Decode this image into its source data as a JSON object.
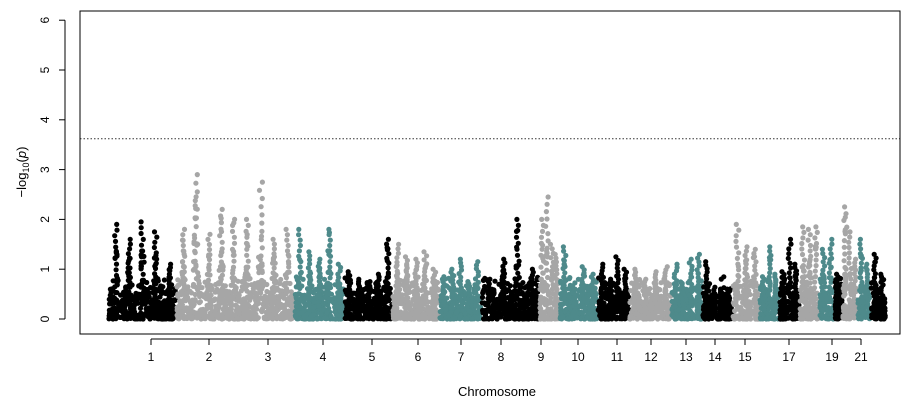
{
  "chart_data": {
    "type": "scatter",
    "title": "",
    "xlabel": "Chromosome",
    "ylabel": "−log₁₀(p)",
    "ylabel_parts": {
      "pre": "−log",
      "sub": "10",
      "post": "(",
      "var": "p",
      "close": ")"
    },
    "ylim": [
      0,
      6
    ],
    "yticks": [
      "0",
      "1",
      "2",
      "3",
      "4",
      "5",
      "6"
    ],
    "threshold": 3.62,
    "grid": false,
    "legend": "none",
    "colors": [
      "#000000",
      "#a6a6a6",
      "#4e8a8b"
    ],
    "x_tick_labels": [
      "1",
      "2",
      "3",
      "4",
      "5",
      "6",
      "7",
      "8",
      "9",
      "10",
      "11",
      "12",
      "13",
      "14",
      "15",
      "17",
      "19",
      "21"
    ],
    "chromosomes": [
      {
        "chr": 1,
        "color": "#000000",
        "peaks": [
          1.9,
          1.6,
          1.95,
          1.75,
          1.1
        ]
      },
      {
        "chr": 2,
        "color": "#a6a6a6",
        "peaks": [
          1.8,
          2.9,
          1.7,
          2.2,
          2.0
        ]
      },
      {
        "chr": 3,
        "color": "#a6a6a6",
        "peaks": [
          2.0,
          2.75,
          1.6,
          1.8
        ]
      },
      {
        "chr": 4,
        "color": "#4e8a8b",
        "peaks": [
          1.8,
          1.35,
          1.2,
          1.8,
          1.1
        ]
      },
      {
        "chr": 5,
        "color": "#000000",
        "peaks": [
          0.95,
          0.8,
          0.75,
          0.9,
          1.6
        ]
      },
      {
        "chr": 6,
        "color": "#a6a6a6",
        "peaks": [
          1.5,
          1.25,
          1.2,
          1.35,
          1.0
        ]
      },
      {
        "chr": 7,
        "color": "#4e8a8b",
        "peaks": [
          0.85,
          1.0,
          1.2,
          0.75,
          1.15
        ]
      },
      {
        "chr": 8,
        "color": "#000000",
        "peaks": [
          0.8,
          1.2,
          2.0,
          1.0
        ]
      },
      {
        "chr": 9,
        "color": "#a6a6a6",
        "peaks": [
          2.0,
          2.45,
          1.5,
          1.3
        ]
      },
      {
        "chr": 10,
        "color": "#4e8a8b",
        "peaks": [
          1.45,
          0.6,
          1.05,
          0.9
        ]
      },
      {
        "chr": 11,
        "color": "#000000",
        "peaks": [
          1.1,
          0.8,
          1.25,
          1.0
        ]
      },
      {
        "chr": 12,
        "color": "#a6a6a6",
        "peaks": [
          1.0,
          0.8,
          0.95,
          1.05
        ]
      },
      {
        "chr": 13,
        "color": "#4e8a8b",
        "peaks": [
          1.1,
          0.65,
          1.2,
          1.3
        ]
      },
      {
        "chr": 14,
        "color": "#000000",
        "peaks": [
          1.15,
          0.5,
          0.6,
          0.6
        ]
      },
      {
        "chr": 15,
        "color": "#a6a6a6",
        "peaks": [
          1.9,
          1.45,
          1.4
        ]
      },
      {
        "chr": 16,
        "color": "#4e8a8b",
        "peaks": [
          0.85,
          1.45,
          0.9
        ]
      },
      {
        "chr": 17,
        "color": "#000000",
        "peaks": [
          0.95,
          1.6,
          1.1
        ]
      },
      {
        "chr": 18,
        "color": "#a6a6a6",
        "peaks": [
          1.85,
          1.8,
          1.85
        ]
      },
      {
        "chr": 19,
        "color": "#4e8a8b",
        "peaks": [
          1.4,
          1.6
        ]
      },
      {
        "chr": 20,
        "color": "#000000",
        "peaks": [
          0.9,
          0.7
        ]
      },
      {
        "chr": 21,
        "color": "#a6a6a6",
        "peaks": [
          2.25,
          1.75,
          1.2
        ]
      },
      {
        "chr": 22,
        "color": "#4e8a8b",
        "peaks": [
          1.6,
          1.1
        ]
      },
      {
        "chr": 23,
        "color": "#000000",
        "peaks": [
          1.3,
          0.9
        ]
      }
    ]
  }
}
